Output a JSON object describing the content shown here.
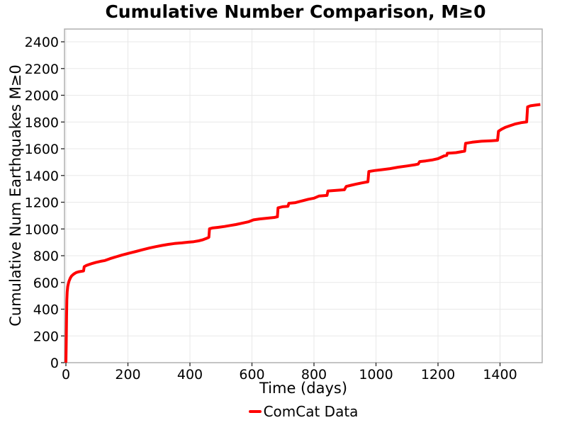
{
  "chart_data": {
    "type": "line",
    "title": "Cumulative Number Comparison, M≥0",
    "xlabel": "Time (days)",
    "ylabel": "Cumulative Num Earthquakes M≥0",
    "xlim": [
      0,
      1536
    ],
    "ylim": [
      0,
      2400
    ],
    "xticks": [
      0,
      200,
      400,
      600,
      800,
      1000,
      1200,
      1400
    ],
    "yticks": [
      0,
      200,
      400,
      600,
      800,
      1000,
      1200,
      1400,
      1600,
      1800,
      2000,
      2200,
      2400
    ],
    "grid": true,
    "legend_position": "bottom-center",
    "series": [
      {
        "name": "ComCat Data",
        "color": "#ff0000",
        "line_width": 4,
        "points": [
          [
            0,
            0
          ],
          [
            1,
            130
          ],
          [
            2,
            340
          ],
          [
            3,
            470
          ],
          [
            4,
            530
          ],
          [
            6,
            570
          ],
          [
            8,
            592
          ],
          [
            10,
            610
          ],
          [
            14,
            632
          ],
          [
            18,
            648
          ],
          [
            25,
            662
          ],
          [
            33,
            674
          ],
          [
            42,
            680
          ],
          [
            52,
            684
          ],
          [
            57,
            686
          ],
          [
            59,
            718
          ],
          [
            66,
            727
          ],
          [
            74,
            734
          ],
          [
            85,
            742
          ],
          [
            97,
            750
          ],
          [
            112,
            758
          ],
          [
            126,
            764
          ],
          [
            142,
            778
          ],
          [
            162,
            792
          ],
          [
            182,
            806
          ],
          [
            206,
            820
          ],
          [
            226,
            832
          ],
          [
            246,
            844
          ],
          [
            270,
            858
          ],
          [
            290,
            868
          ],
          [
            310,
            877
          ],
          [
            330,
            885
          ],
          [
            350,
            891
          ],
          [
            374,
            896
          ],
          [
            395,
            901
          ],
          [
            412,
            905
          ],
          [
            428,
            911
          ],
          [
            440,
            918
          ],
          [
            452,
            928
          ],
          [
            461,
            938
          ],
          [
            463,
            1002
          ],
          [
            472,
            1007
          ],
          [
            490,
            1012
          ],
          [
            512,
            1019
          ],
          [
            530,
            1026
          ],
          [
            548,
            1033
          ],
          [
            566,
            1042
          ],
          [
            588,
            1053
          ],
          [
            605,
            1068
          ],
          [
            625,
            1075
          ],
          [
            650,
            1081
          ],
          [
            672,
            1086
          ],
          [
            682,
            1091
          ],
          [
            684,
            1158
          ],
          [
            698,
            1166
          ],
          [
            716,
            1170
          ],
          [
            719,
            1192
          ],
          [
            740,
            1197
          ],
          [
            762,
            1210
          ],
          [
            782,
            1222
          ],
          [
            800,
            1230
          ],
          [
            816,
            1246
          ],
          [
            842,
            1251
          ],
          [
            845,
            1284
          ],
          [
            868,
            1288
          ],
          [
            898,
            1293
          ],
          [
            904,
            1318
          ],
          [
            920,
            1327
          ],
          [
            937,
            1336
          ],
          [
            958,
            1346
          ],
          [
            974,
            1353
          ],
          [
            977,
            1430
          ],
          [
            995,
            1437
          ],
          [
            1018,
            1443
          ],
          [
            1045,
            1451
          ],
          [
            1072,
            1462
          ],
          [
            1100,
            1471
          ],
          [
            1125,
            1480
          ],
          [
            1136,
            1485
          ],
          [
            1141,
            1504
          ],
          [
            1160,
            1509
          ],
          [
            1180,
            1516
          ],
          [
            1200,
            1526
          ],
          [
            1220,
            1547
          ],
          [
            1228,
            1550
          ],
          [
            1230,
            1566
          ],
          [
            1258,
            1571
          ],
          [
            1286,
            1582
          ],
          [
            1289,
            1641
          ],
          [
            1310,
            1649
          ],
          [
            1340,
            1656
          ],
          [
            1372,
            1660
          ],
          [
            1392,
            1663
          ],
          [
            1395,
            1731
          ],
          [
            1405,
            1746
          ],
          [
            1418,
            1761
          ],
          [
            1432,
            1772
          ],
          [
            1450,
            1786
          ],
          [
            1468,
            1795
          ],
          [
            1486,
            1801
          ],
          [
            1489,
            1913
          ],
          [
            1498,
            1921
          ],
          [
            1512,
            1926
          ],
          [
            1530,
            1931
          ]
        ]
      }
    ]
  },
  "colors": {
    "line": "#ff0000",
    "grid": "#e8e8e8",
    "spine": "#b0b0b0",
    "tick": "#262626",
    "text": "#000000",
    "background": "#ffffff"
  },
  "legend": {
    "label": "ComCat Data"
  }
}
